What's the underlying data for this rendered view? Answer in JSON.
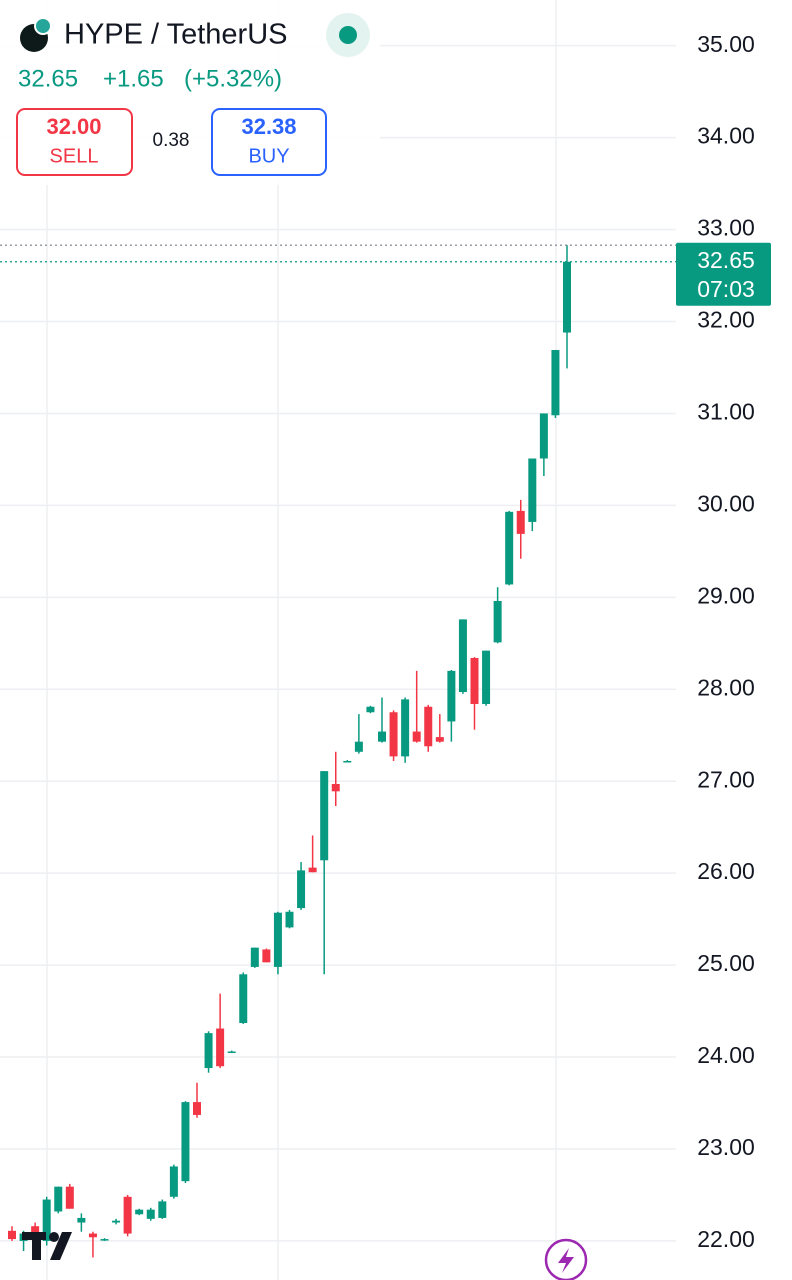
{
  "chart_data": {
    "type": "candlestick",
    "symbol": "HYPE / TetherUS",
    "last_price": 32.65,
    "change": "+1.65",
    "change_pct": "(+5.32%)",
    "sell_price": "32.00",
    "sell_label": "SELL",
    "spread": "0.38",
    "buy_price": "32.38",
    "buy_label": "BUY",
    "countdown": "07:03",
    "high_line": 32.83,
    "up_color": "#089981",
    "down_color": "#f23645",
    "ylim": [
      21.7,
      35.35
    ],
    "yticks": [
      {
        "value": 22,
        "label": "22.00"
      },
      {
        "value": 23,
        "label": "23.00"
      },
      {
        "value": 24,
        "label": "24.00"
      },
      {
        "value": 25,
        "label": "25.00"
      },
      {
        "value": 26,
        "label": "26.00"
      },
      {
        "value": 27,
        "label": "27.00"
      },
      {
        "value": 28,
        "label": "28.00"
      },
      {
        "value": 29,
        "label": "29.00"
      },
      {
        "value": 30,
        "label": "30.00"
      },
      {
        "value": 31,
        "label": "31.00"
      },
      {
        "value": 32,
        "label": "32.00"
      },
      {
        "value": 33,
        "label": "33.00"
      },
      {
        "value": 34,
        "label": "34.00"
      },
      {
        "value": 35,
        "label": "35.00"
      }
    ],
    "grid": true,
    "open": [
      22.11,
      22.0,
      22.16,
      22.0,
      22.32,
      22.59,
      22.2,
      22.08,
      22.01,
      22.2,
      22.48,
      22.29,
      22.24,
      22.25,
      22.48,
      22.65,
      23.51,
      23.88,
      24.31,
      24.06,
      24.37,
      24.98,
      25.17,
      24.98,
      25.41,
      25.62,
      26.06,
      26.14,
      26.97,
      27.22,
      27.32,
      27.75,
      27.43,
      27.75,
      27.27,
      27.54,
      27.81,
      27.48,
      27.65,
      27.97,
      28.34,
      27.84,
      28.51,
      29.14,
      29.94,
      29.82,
      30.51,
      30.98,
      31.88
    ],
    "high": [
      22.16,
      22.11,
      22.2,
      22.48,
      22.59,
      22.62,
      22.3,
      22.1,
      22.03,
      22.24,
      22.5,
      22.35,
      22.36,
      22.45,
      22.83,
      23.52,
      23.72,
      24.28,
      24.69,
      24.07,
      24.92,
      25.19,
      25.18,
      25.58,
      25.6,
      26.12,
      26.41,
      27.11,
      27.32,
      27.23,
      27.73,
      27.82,
      27.91,
      27.77,
      27.91,
      28.2,
      27.83,
      27.73,
      28.21,
      28.76,
      28.35,
      28.42,
      29.11,
      29.94,
      30.06,
      30.51,
      31.0,
      31.69,
      32.83
    ],
    "low": [
      22.0,
      21.89,
      22.05,
      21.95,
      22.3,
      22.35,
      22.1,
      21.82,
      22.0,
      22.18,
      22.05,
      22.28,
      22.22,
      22.24,
      22.46,
      22.63,
      23.34,
      23.83,
      23.88,
      24.05,
      24.36,
      24.97,
      25.03,
      24.9,
      25.4,
      25.6,
      26.01,
      24.9,
      26.73,
      27.21,
      27.3,
      27.74,
      27.42,
      27.22,
      27.2,
      27.42,
      27.32,
      27.42,
      27.43,
      27.95,
      27.56,
      27.82,
      28.5,
      29.13,
      29.42,
      29.72,
      30.32,
      30.95,
      31.49
    ],
    "close": [
      22.02,
      22.08,
      22.08,
      22.45,
      22.59,
      22.35,
      22.25,
      22.04,
      22.02,
      22.22,
      22.08,
      22.34,
      22.34,
      22.43,
      22.81,
      23.51,
      23.37,
      24.26,
      23.9,
      24.06,
      24.9,
      25.19,
      25.03,
      25.57,
      25.58,
      26.03,
      26.01,
      27.11,
      26.89,
      27.22,
      27.43,
      27.81,
      27.54,
      27.27,
      27.89,
      27.43,
      27.38,
      27.43,
      28.2,
      28.76,
      27.84,
      28.42,
      28.96,
      29.93,
      29.69,
      30.51,
      31.0,
      31.69,
      32.65
    ]
  }
}
